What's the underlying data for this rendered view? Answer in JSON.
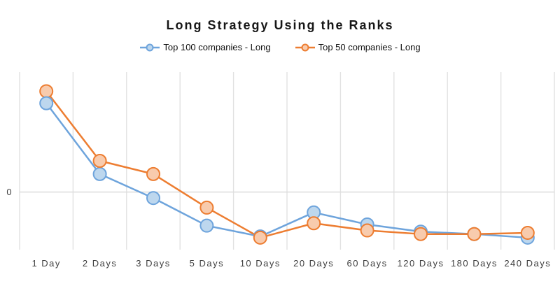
{
  "title": "Long Strategy Using the Ranks",
  "colors": {
    "background": "#ffffff",
    "gridline": "#e1e1e1",
    "zero_line": "#dddddd",
    "axis_text": "#3f3f3f",
    "title_text": "#161616",
    "blue_stroke": "#6ea4dc",
    "blue_fill": "#bdd7ee",
    "orange_stroke": "#ed7d31",
    "orange_fill": "#f8cbad"
  },
  "y_axis": {
    "tick_labels": [
      "0"
    ]
  },
  "chart_data": {
    "type": "line",
    "title": "Long Strategy Using the Ranks",
    "xlabel": "",
    "ylabel": "",
    "categories": [
      "1 Day",
      "2 Days",
      "3 Days",
      "5 Days",
      "10 Days",
      "20 Days",
      "60 Days",
      "120 Days",
      "180 Days",
      "240 Days"
    ],
    "series": [
      {
        "name": "Top 100 companies - Long",
        "color": "#6ea4dc",
        "marker_fill": "#bdd7ee",
        "values": [
          0.74,
          0.15,
          -0.05,
          -0.28,
          -0.37,
          -0.17,
          -0.27,
          -0.33,
          -0.35,
          -0.38
        ]
      },
      {
        "name": "Top 50 companies - Long",
        "color": "#ed7d31",
        "marker_fill": "#f8cbad",
        "values": [
          0.84,
          0.26,
          0.15,
          -0.13,
          -0.38,
          -0.26,
          -0.32,
          -0.35,
          -0.35,
          -0.34
        ]
      }
    ],
    "ylim": [
      -0.48,
      1.0
    ],
    "yticks": [
      0
    ],
    "grid": "vertical gridlines at category boundaries plus horizontal zero line",
    "legend_position": "top-center",
    "note_units": "y-axis unlabeled except 0; values are relative estimates"
  }
}
